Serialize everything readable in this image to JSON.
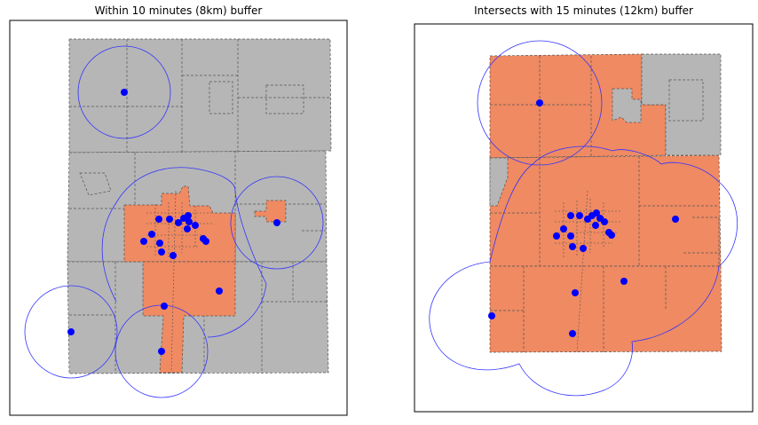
{
  "colors": {
    "background": "#ffffff",
    "outside_fill": "#b6b6b6",
    "inside_fill": "#ef8a62",
    "boundary": "#555555",
    "point": "#0000ff",
    "buffer_ring": "#3333ff"
  },
  "panels": [
    {
      "title": "Within 10 minutes (8km) buffer"
    },
    {
      "title": "Intersects with 15 minutes (12km) buffer"
    }
  ]
}
